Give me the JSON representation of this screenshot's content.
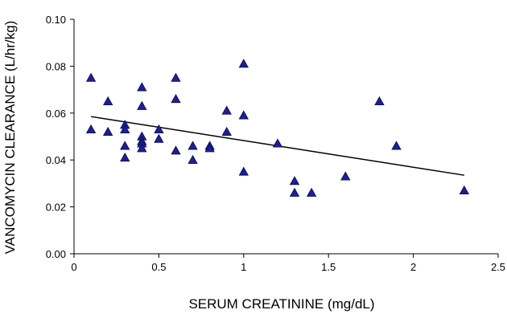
{
  "chart_data": {
    "type": "scatter",
    "title": "",
    "xlabel": "SERUM CREATININE (mg/dL)",
    "ylabel": "VANCOMYCIN CLEARANCE (L/hr/kg)",
    "xlim": [
      0,
      2.5
    ],
    "ylim": [
      0,
      0.1
    ],
    "x_ticks": [
      "0",
      "0.5",
      "1",
      "1.5",
      "2",
      "2.5"
    ],
    "y_ticks": [
      "0.00",
      "0.02",
      "0.04",
      "0.06",
      "0.08",
      "0.10"
    ],
    "x_tick_values": [
      0,
      0.5,
      1,
      1.5,
      2,
      2.5
    ],
    "y_tick_values": [
      0,
      0.02,
      0.04,
      0.06,
      0.08,
      0.1
    ],
    "grid": false,
    "legend": "none",
    "marker": "triangle",
    "marker_color": "#1f1f8f",
    "trendline_color": "#000000",
    "series": [
      {
        "points": [
          [
            0.1,
            0.075
          ],
          [
            0.1,
            0.053
          ],
          [
            0.2,
            0.065
          ],
          [
            0.2,
            0.052
          ],
          [
            0.3,
            0.055
          ],
          [
            0.3,
            0.053
          ],
          [
            0.3,
            0.046
          ],
          [
            0.3,
            0.041
          ],
          [
            0.4,
            0.071
          ],
          [
            0.4,
            0.063
          ],
          [
            0.4,
            0.05
          ],
          [
            0.4,
            0.048
          ],
          [
            0.4,
            0.047
          ],
          [
            0.4,
            0.045
          ],
          [
            0.5,
            0.053
          ],
          [
            0.5,
            0.049
          ],
          [
            0.6,
            0.075
          ],
          [
            0.6,
            0.066
          ],
          [
            0.6,
            0.044
          ],
          [
            0.7,
            0.046
          ],
          [
            0.7,
            0.04
          ],
          [
            0.8,
            0.046
          ],
          [
            0.8,
            0.045
          ],
          [
            0.9,
            0.061
          ],
          [
            0.9,
            0.052
          ],
          [
            1.0,
            0.081
          ],
          [
            1.0,
            0.059
          ],
          [
            1.0,
            0.035
          ],
          [
            1.2,
            0.047
          ],
          [
            1.3,
            0.031
          ],
          [
            1.3,
            0.026
          ],
          [
            1.4,
            0.026
          ],
          [
            1.6,
            0.033
          ],
          [
            1.8,
            0.065
          ],
          [
            1.9,
            0.046
          ],
          [
            2.3,
            0.027
          ]
        ]
      }
    ],
    "trendline": {
      "type": "linear",
      "start": [
        0.1,
        0.0585
      ],
      "end": [
        2.3,
        0.0335
      ]
    }
  }
}
